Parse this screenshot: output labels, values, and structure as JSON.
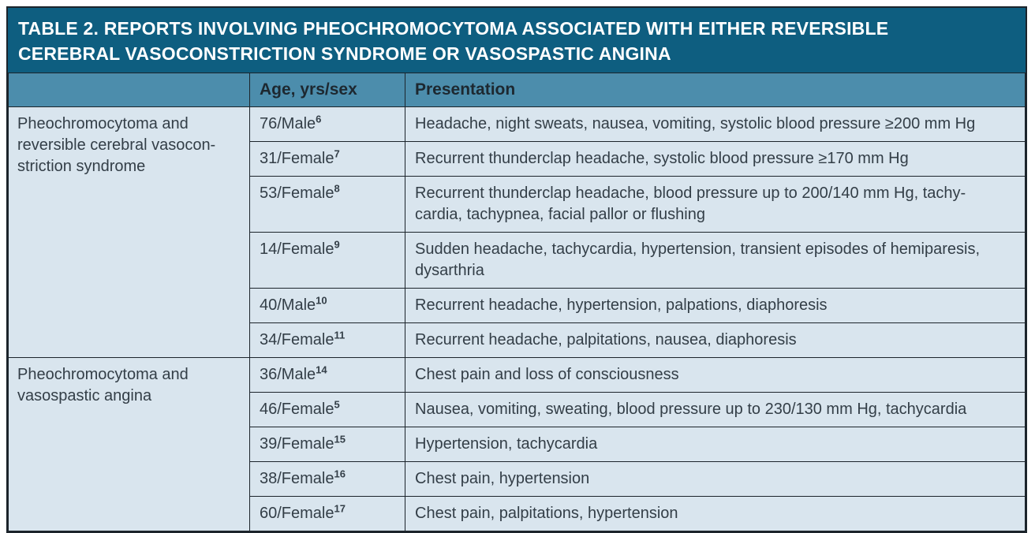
{
  "table": {
    "title_lines": [
      "TABLE 2. REPORTS INVOLVING PHEOCHROMOCYTOMA ASSOCIATED WITH EITHER REVERSIBLE",
      "CEREBRAL VASOCONSTRICTION SYNDROME OR VASOSPASTIC ANGINA"
    ],
    "columns": {
      "group": "",
      "age_sex": "Age, yrs/sex",
      "presentation": "Presentation"
    },
    "groups": [
      {
        "label": "Pheochromocytoma and\nreversible cerebral vasocon-\nstriction syndrome",
        "rows": [
          {
            "age_sex": "76/Male",
            "ref": "6",
            "presentation": "Headache, night sweats, nausea, vomiting, systolic blood pressure ≥200 mm Hg"
          },
          {
            "age_sex": "31/Female",
            "ref": "7",
            "presentation": "Recurrent thunderclap headache, systolic blood pressure ≥170 mm Hg"
          },
          {
            "age_sex": "53/Female",
            "ref": "8",
            "presentation": "Recurrent thunderclap headache, blood pressure up to 200/140 mm Hg, tachy-\ncardia, tachypnea, facial pallor or flushing"
          },
          {
            "age_sex": "14/Female",
            "ref": "9",
            "presentation": "Sudden headache, tachycardia, hypertension, transient episodes of hemiparesis,\ndysarthria"
          },
          {
            "age_sex": "40/Male",
            "ref": "10",
            "presentation": "Recurrent headache, hypertension, palpations, diaphoresis"
          },
          {
            "age_sex": "34/Female",
            "ref": "11",
            "presentation": "Recurrent headache, palpitations, nausea, diaphoresis"
          }
        ]
      },
      {
        "label": "Pheochromocytoma and\nvasospastic angina",
        "rows": [
          {
            "age_sex": "36/Male",
            "ref": "14",
            "presentation": "Chest pain and loss of consciousness"
          },
          {
            "age_sex": "46/Female",
            "ref": "5",
            "presentation": "Nausea, vomiting, sweating, blood pressure up to 230/130 mm Hg, tachycardia"
          },
          {
            "age_sex": "39/Female",
            "ref": "15",
            "presentation": "Hypertension, tachycardia"
          },
          {
            "age_sex": "38/Female",
            "ref": "16",
            "presentation": "Chest pain, hypertension"
          },
          {
            "age_sex": "60/Female",
            "ref": "17",
            "presentation": "Chest pain, palpitations, hypertension"
          }
        ]
      }
    ],
    "colors": {
      "title_bg": "#0e5e80",
      "title_text": "#ffffff",
      "header_bg": "#4c8dac",
      "header_text": "#1d2830",
      "body_bg": "#d9e5ee",
      "body_text": "#333e47",
      "border": "#1c242b"
    }
  }
}
